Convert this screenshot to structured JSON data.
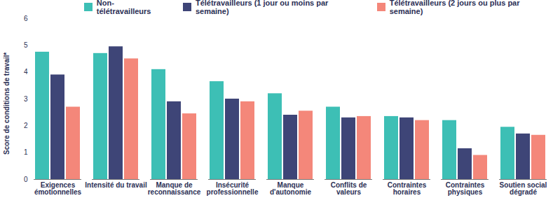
{
  "chart_data": {
    "type": "bar",
    "ylabel": "Score de conditions de travail*",
    "categories": [
      "Exigences émotionnelles",
      "Intensité du travail",
      "Manque de reconnaissance",
      "Insécurité professionnelle",
      "Manque d'autonomie",
      "Conflits de valeurs",
      "Contraintes horaires",
      "Contraintes physiques",
      "Soutien social dégradé"
    ],
    "series": [
      {
        "name": "Non-télétravailleurs",
        "color": "#3dbfb5",
        "values": [
          4.75,
          4.7,
          4.1,
          3.65,
          3.2,
          2.7,
          2.35,
          2.2,
          1.95
        ]
      },
      {
        "name": "Télétravailleurs (1 jour ou moins par semaine)",
        "color": "#3e4577",
        "values": [
          3.9,
          4.95,
          2.9,
          3.0,
          2.4,
          2.3,
          2.3,
          1.15,
          1.7
        ]
      },
      {
        "name": "Télétravailleurs (2 jours ou plus par semaine)",
        "color": "#f4877a",
        "values": [
          2.7,
          4.5,
          2.45,
          2.9,
          2.55,
          2.35,
          2.2,
          0.9,
          1.65
        ]
      }
    ],
    "ylim": [
      0,
      6
    ],
    "yticks": [
      0,
      1,
      2,
      3,
      4,
      5,
      6
    ],
    "grid": false,
    "legend": "top"
  }
}
